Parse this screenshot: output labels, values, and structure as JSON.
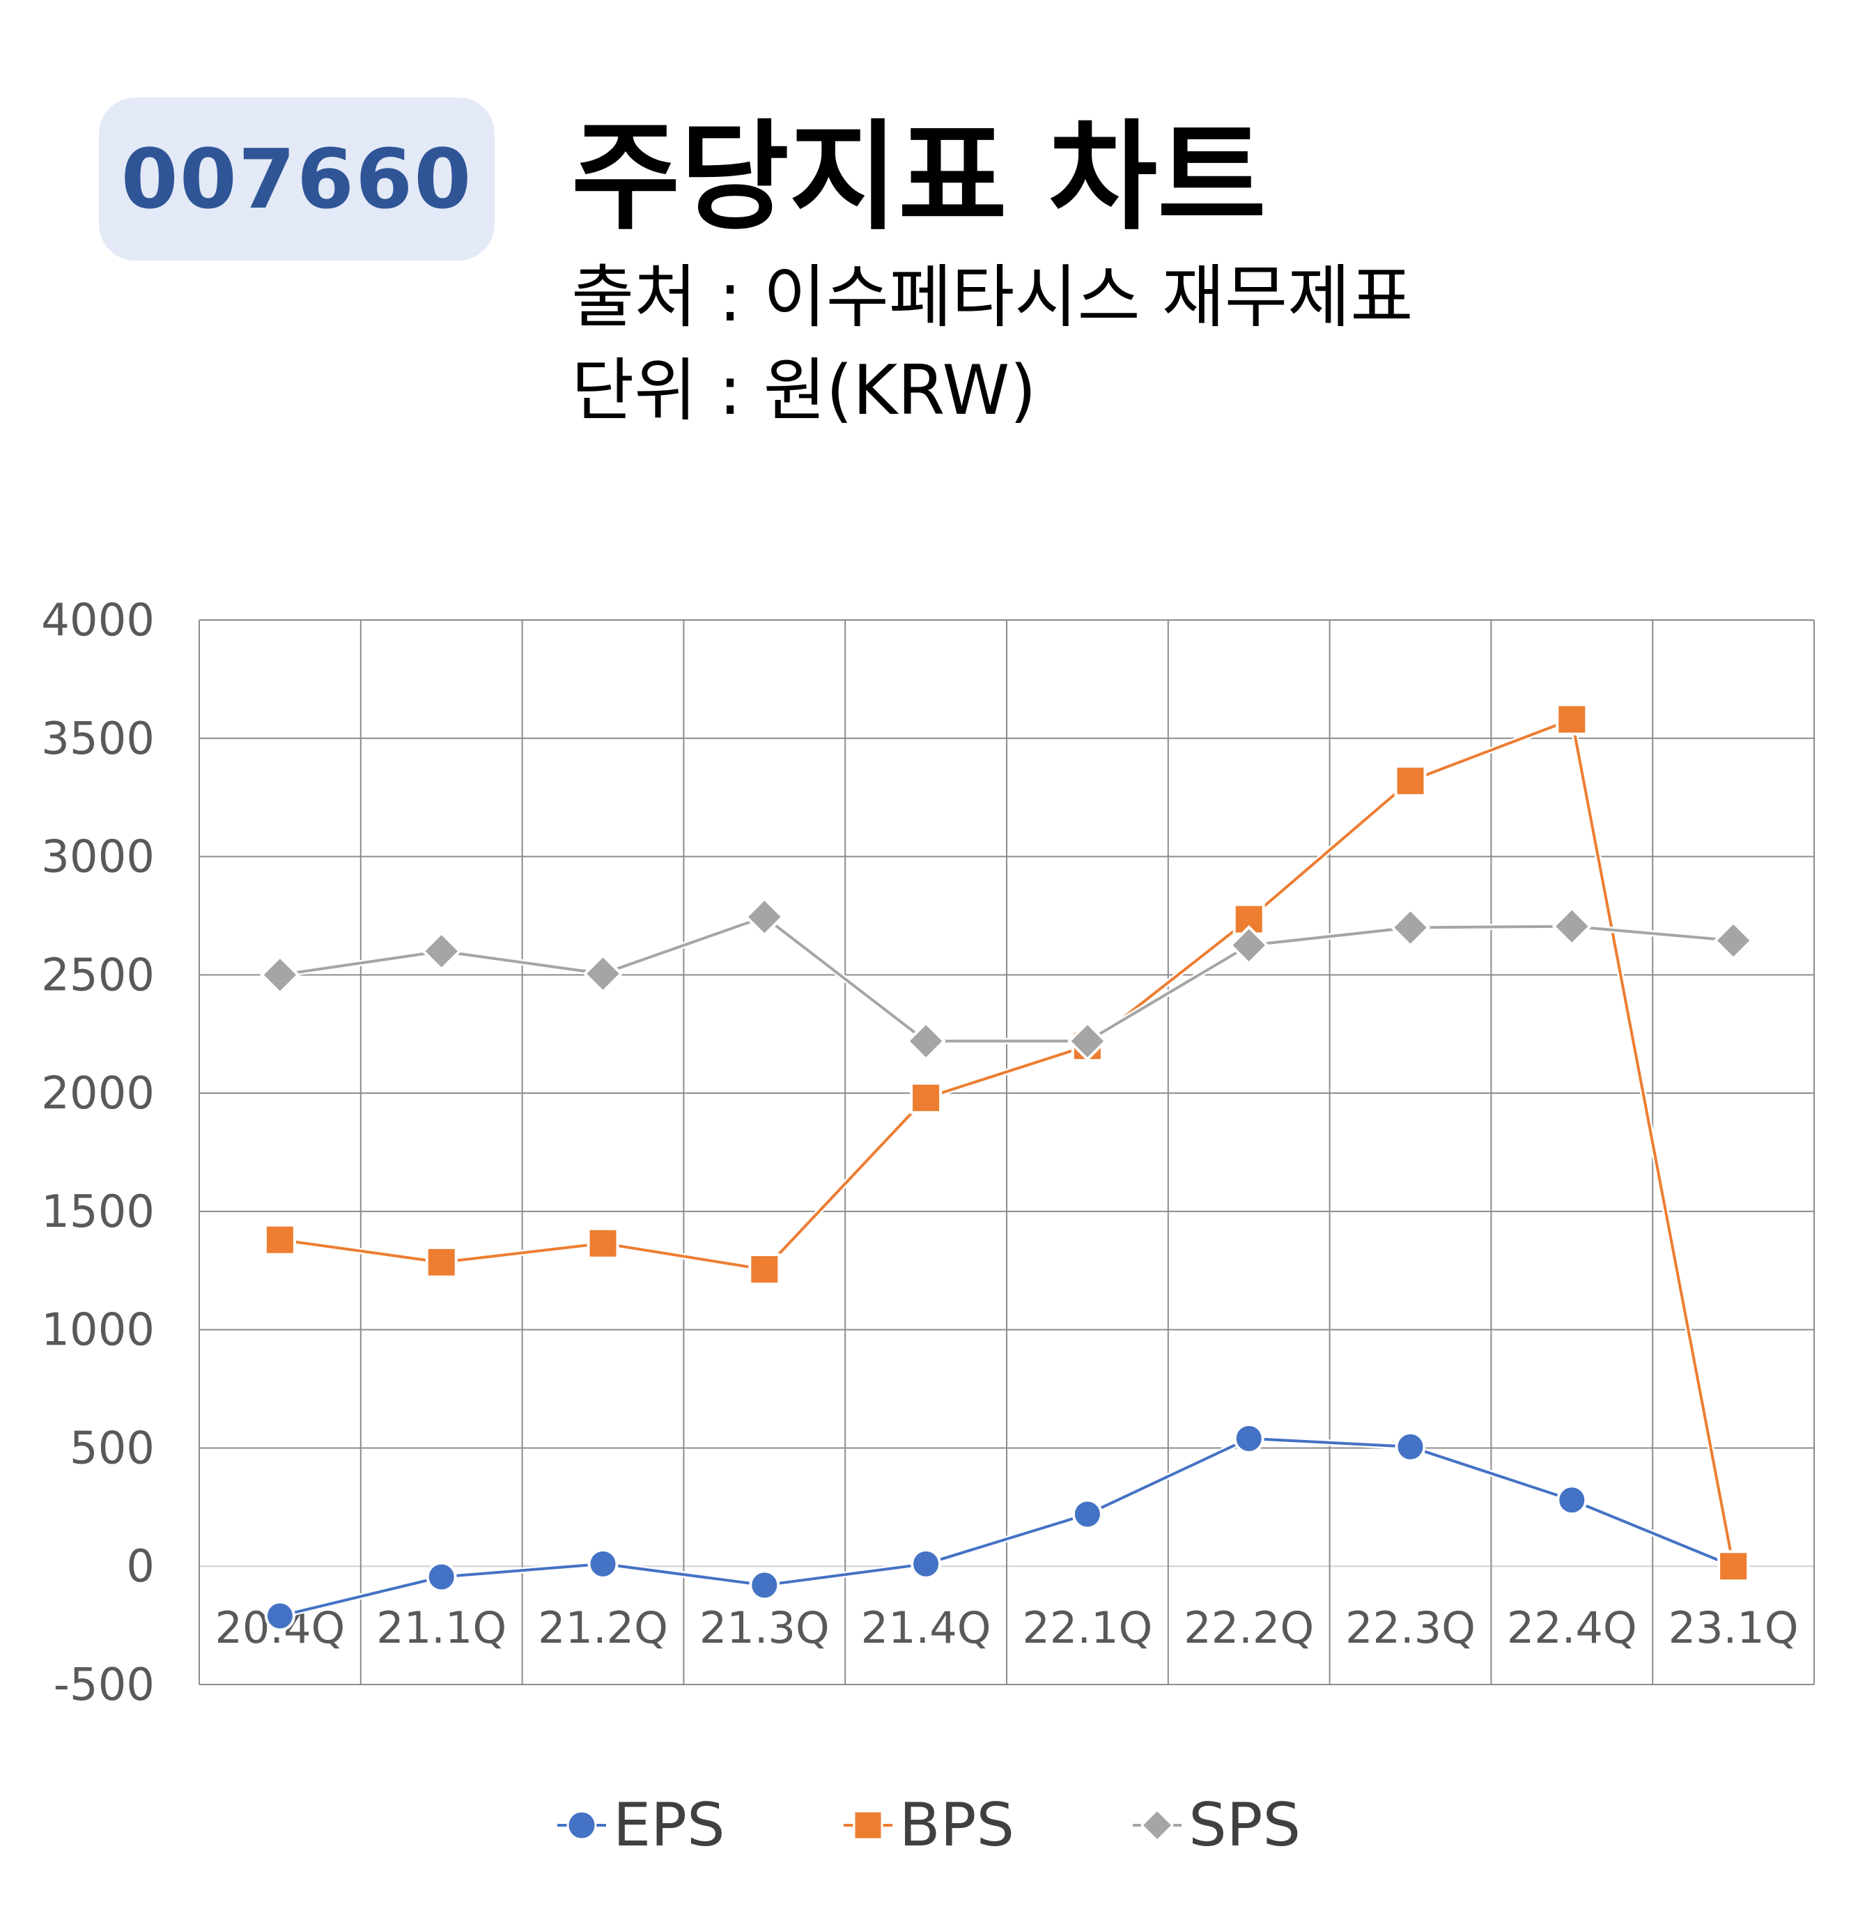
{
  "header": {
    "code": "007660",
    "title": "주당지표 차트",
    "source": "출처 : 이수페타시스 재무제표",
    "unit": "단위 : 원(KRW)"
  },
  "chart_data": {
    "type": "line",
    "categories": [
      "20.4Q",
      "21.1Q",
      "21.2Q",
      "21.3Q",
      "21.4Q",
      "22.1Q",
      "22.2Q",
      "22.3Q",
      "22.4Q",
      "23.1Q"
    ],
    "series": [
      {
        "name": "EPS",
        "color": "#4472c4",
        "marker": "circle",
        "values": [
          -210,
          -45,
          10,
          -80,
          10,
          220,
          540,
          505,
          280,
          0
        ]
      },
      {
        "name": "BPS",
        "color": "#ed7d31",
        "marker": "square",
        "values": [
          1380,
          1285,
          1365,
          1255,
          1980,
          2200,
          2735,
          3320,
          3580,
          0
        ]
      },
      {
        "name": "SPS",
        "color": "#a5a5a5",
        "marker": "diamond",
        "values": [
          2500,
          2600,
          2505,
          2745,
          2220,
          2220,
          2625,
          2700,
          2705,
          2645
        ]
      }
    ],
    "ylim": [
      -500,
      4000
    ],
    "yticks": [
      "4000",
      "3500",
      "3000",
      "2500",
      "2000",
      "1500",
      "1000",
      "500",
      "0",
      "-500"
    ],
    "grid": true,
    "legend_position": "bottom"
  }
}
